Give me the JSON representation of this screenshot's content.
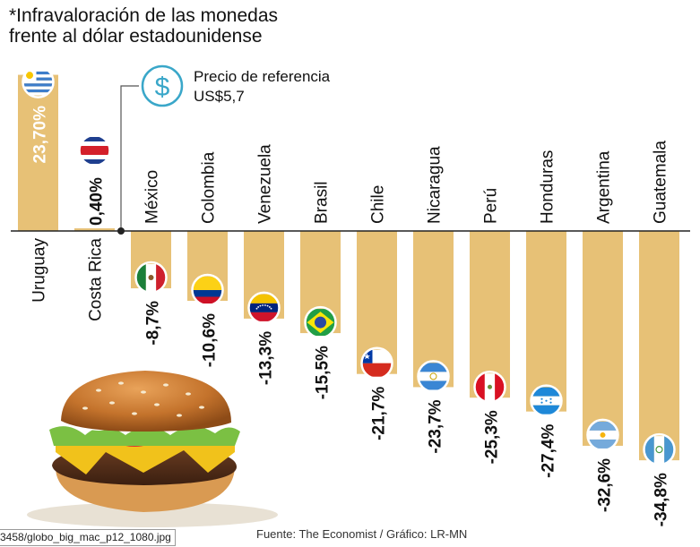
{
  "title": "*Infravaloración de las monedas frente al dólar estadounidense",
  "reference": {
    "line1": "Precio de referencia",
    "line2": "US$5,7"
  },
  "source": "Fuente: The Economist / Gráfico: LR-MN",
  "filename": "3458/globo_big_mac_p12_1080.jpg",
  "colors": {
    "bar": "#e7c176",
    "baseline": "#222222"
  },
  "chart_data": {
    "type": "bar",
    "title": "*Infravaloración de las monedas frente al dólar estadounidense",
    "xlabel": "",
    "ylabel": "",
    "categories": [
      "Uruguay",
      "Costa Rica",
      "México",
      "Colombia",
      "Venezuela",
      "Brasil",
      "Chile",
      "Nicaragua",
      "Perú",
      "Honduras",
      "Argentina",
      "Guatemala"
    ],
    "values": [
      23.7,
      0.4,
      -8.7,
      -10.6,
      -13.3,
      -15.5,
      -21.7,
      -23.7,
      -25.3,
      -27.4,
      -32.6,
      -34.8
    ],
    "value_labels": [
      "23,70%",
      "0,40%",
      "-8,7%",
      "-10,6%",
      "-13,3%",
      "-15,5%",
      "-21,7%",
      "-23,7%",
      "-25,3%",
      "-27,4%",
      "-32,6%",
      "-34,8%"
    ],
    "flags": [
      "uruguay-flag",
      "costa-rica-flag",
      "mexico-flag",
      "colombia-flag",
      "venezuela-flag",
      "brazil-flag",
      "chile-flag",
      "nicaragua-flag",
      "peru-flag",
      "honduras-flag",
      "argentina-flag",
      "guatemala-flag"
    ],
    "reference_value": 0,
    "grid": false,
    "legend": "none"
  }
}
